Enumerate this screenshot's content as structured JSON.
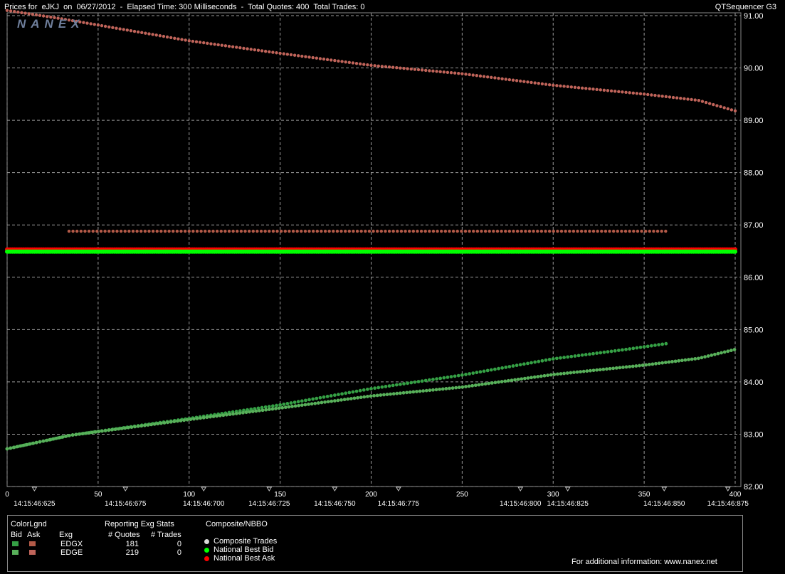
{
  "header": {
    "title": "Prices for  eJKJ  on  06/27/2012  -  Elapsed Time: 300 Milliseconds  -  Total Quotes: 400  Total Trades: 0",
    "app": "QTSequencer G3",
    "logo": "NANEX"
  },
  "colors": {
    "edgx_bid": "#35a045",
    "edgx_ask": "#b35a48",
    "edge_bid": "#58b05a",
    "edge_ask": "#c0645a",
    "national_best_bid": "#00ff00",
    "national_best_ask": "#ff0000",
    "composite_trades": "#d8d8d8"
  },
  "chart_data": {
    "type": "scatter",
    "x_range": [
      0,
      400
    ],
    "ylim": [
      82.0,
      91.0
    ],
    "grid": true,
    "x_ticks": [
      0,
      50,
      100,
      150,
      200,
      250,
      300,
      350,
      400
    ],
    "y_ticks": [
      "82.00",
      "83.00",
      "84.00",
      "85.00",
      "86.00",
      "87.00",
      "88.00",
      "89.00",
      "90.00",
      "91.00"
    ],
    "time_labels": [
      {
        "x": 15,
        "label": "14:15:46:625"
      },
      {
        "x": 65,
        "label": "14:15:46:675"
      },
      {
        "x": 108,
        "label": "14:15:46:700"
      },
      {
        "x": 144,
        "label": "14:15:46:725"
      },
      {
        "x": 180,
        "label": "14:15:46:750"
      },
      {
        "x": 215,
        "label": "14:15:46:775"
      },
      {
        "x": 282,
        "label": "14:15:46:800"
      },
      {
        "x": 308,
        "label": "14:15:46:825"
      },
      {
        "x": 361,
        "label": "14:15:46:850"
      },
      {
        "x": 396,
        "label": "14:15:46:875"
      }
    ],
    "series": [
      {
        "id": "edgx_ask",
        "points": [
          [
            34,
            86.88
          ],
          [
            362,
            86.88
          ]
        ]
      },
      {
        "id": "edge_ask",
        "points": [
          [
            0,
            91.1
          ],
          [
            30,
            90.94
          ],
          [
            100,
            90.52
          ],
          [
            150,
            90.28
          ],
          [
            200,
            90.05
          ],
          [
            250,
            89.89
          ],
          [
            300,
            89.67
          ],
          [
            350,
            89.5
          ],
          [
            380,
            89.38
          ],
          [
            400,
            89.18
          ]
        ]
      },
      {
        "id": "edgx_bid",
        "points": [
          [
            0,
            82.72
          ],
          [
            35,
            82.98
          ],
          [
            100,
            83.3
          ],
          [
            150,
            83.56
          ],
          [
            200,
            83.87
          ],
          [
            250,
            84.13
          ],
          [
            300,
            84.44
          ],
          [
            340,
            84.62
          ],
          [
            362,
            84.73
          ]
        ]
      },
      {
        "id": "edge_bid",
        "points": [
          [
            0,
            82.72
          ],
          [
            35,
            82.98
          ],
          [
            100,
            83.28
          ],
          [
            150,
            83.5
          ],
          [
            200,
            83.73
          ],
          [
            250,
            83.9
          ],
          [
            300,
            84.14
          ],
          [
            350,
            84.32
          ],
          [
            380,
            84.45
          ],
          [
            400,
            84.62
          ]
        ]
      },
      {
        "id": "national_best_ask",
        "points": [
          [
            0,
            86.53
          ],
          [
            400,
            86.53
          ]
        ]
      },
      {
        "id": "national_best_bid",
        "points": [
          [
            0,
            86.49
          ],
          [
            400,
            86.49
          ]
        ]
      }
    ]
  },
  "legend": {
    "color_legend_title": "ColorLgnd",
    "bid_header": "Bid",
    "ask_header": "Ask",
    "stats_title": "Reporting Exg Stats",
    "exg_header": "Exg",
    "quotes_header": "# Quotes",
    "trades_header": "# Trades",
    "rows": [
      {
        "exg": "EDGX",
        "quotes": "181",
        "trades": "0"
      },
      {
        "exg": "EDGE",
        "quotes": "219",
        "trades": "0"
      }
    ],
    "nbbo_title": "Composite/NBBO",
    "nbbo_items": [
      "Composite Trades",
      "National Best Bid",
      "National Best Ask"
    ],
    "footer": "For additional information: www.nanex.net"
  }
}
